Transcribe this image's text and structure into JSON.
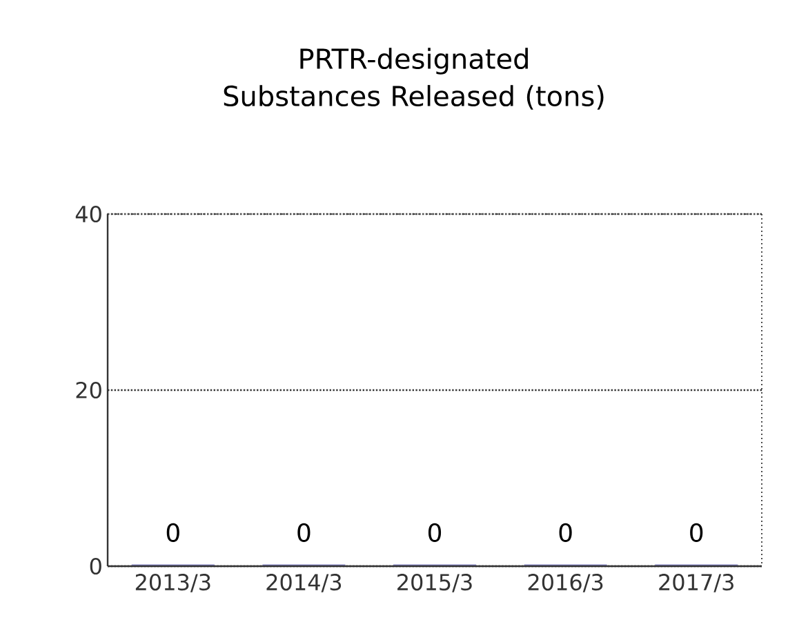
{
  "chart_data": {
    "type": "bar",
    "title": "PRTR-designated Substances Released (tons)",
    "categories": [
      "2013/3",
      "2014/3",
      "2015/3",
      "2016/3",
      "2017/3"
    ],
    "values": [
      0,
      0,
      0,
      0,
      0
    ],
    "color": "#8080c0",
    "ylim": [
      0,
      40
    ],
    "yticks": [
      0,
      20,
      40
    ],
    "grid": "y",
    "data_labels": true
  }
}
